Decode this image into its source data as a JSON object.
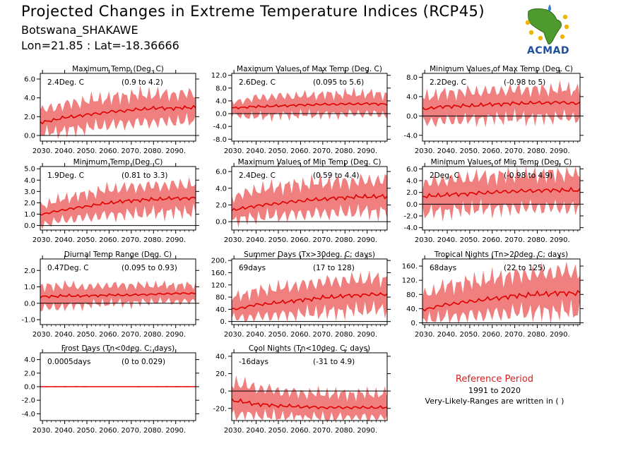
{
  "header": {
    "title": "Projected Changes in Extreme Temperature Indices (RCP45)",
    "subtitle": "Botswana_SHAKAWE",
    "coords": "Lon=21.85 : Lat=-18.36666"
  },
  "logo": {
    "text": "ACMAD"
  },
  "reference": {
    "title": "Reference Period",
    "years": "1991 to 2020",
    "note": "Very-Likely-Ranges are written in ( )"
  },
  "colors": {
    "band": "#f08080",
    "line": "#e00000",
    "zero": "#000000"
  },
  "chart_data": [
    {
      "type": "area",
      "title": "Maximum Temp (Deg. C)",
      "mean_label": "2.4Deg. C",
      "range_label": "(0.9 to 4.2)",
      "ylim": [
        -0.6,
        6.6
      ],
      "yticks": [
        0.0,
        2.0,
        4.0,
        6.0
      ],
      "ytick_labels": [
        "0.0",
        "2.0",
        "4.0",
        "6.0"
      ],
      "xlim": [
        2029,
        2099
      ],
      "xticks": [
        2030,
        2040,
        2050,
        2060,
        2070,
        2080,
        2090
      ],
      "xtick_labels": [
        "2030.",
        "2040.",
        "2050.",
        "2060.",
        "2070.",
        "2080.",
        "2090."
      ],
      "mean": {
        "x": [
          2030,
          2040,
          2050,
          2060,
          2070,
          2080,
          2090,
          2099
        ],
        "y": [
          1.4,
          1.9,
          2.2,
          2.5,
          2.7,
          2.9,
          2.9,
          3.0
        ]
      },
      "lower": {
        "x": [
          2030,
          2040,
          2050,
          2060,
          2070,
          2080,
          2090,
          2099
        ],
        "y": [
          0.2,
          0.5,
          0.8,
          1.1,
          1.3,
          1.4,
          1.5,
          1.5
        ]
      },
      "upper": {
        "x": [
          2030,
          2040,
          2050,
          2060,
          2070,
          2080,
          2090,
          2099
        ],
        "y": [
          2.7,
          3.3,
          3.7,
          4.0,
          4.3,
          4.4,
          4.4,
          4.5
        ]
      }
    },
    {
      "type": "area",
      "title": "Maximum Values of Max Temp (Deg. C)",
      "mean_label": "2.6Deg. C",
      "range_label": "(0.095 to 5.6)",
      "ylim": [
        -8.6,
        12.6
      ],
      "yticks": [
        -8.0,
        -4.0,
        0.0,
        4.0,
        8.0,
        12.0
      ],
      "ytick_labels": [
        "-8.0",
        "-4.0",
        "0.0",
        "4.0",
        "8.0",
        "12.0"
      ],
      "xlim": [
        2029,
        2099
      ],
      "xticks": [
        2030,
        2040,
        2050,
        2060,
        2070,
        2080,
        2090
      ],
      "xtick_labels": [
        "2030.",
        "2040.",
        "2050.",
        "2060.",
        "2070.",
        "2080.",
        "2090."
      ],
      "mean": {
        "x": [
          2030,
          2040,
          2050,
          2060,
          2070,
          2080,
          2090,
          2099
        ],
        "y": [
          1.8,
          2.2,
          2.4,
          2.7,
          2.9,
          3.0,
          3.1,
          3.0
        ]
      },
      "lower": {
        "x": [
          2030,
          2040,
          2050,
          2060,
          2070,
          2080,
          2090,
          2099
        ],
        "y": [
          -0.5,
          -1.0,
          -0.5,
          -0.4,
          -0.3,
          -0.2,
          0.0,
          -0.5
        ]
      },
      "upper": {
        "x": [
          2030,
          2040,
          2050,
          2060,
          2070,
          2080,
          2090,
          2099
        ],
        "y": [
          3.6,
          5.0,
          5.5,
          5.6,
          6.0,
          6.2,
          6.3,
          6.0
        ]
      }
    },
    {
      "type": "area",
      "title": "Minimum Values of Max Temp (Deg. C)",
      "mean_label": "2.2Deg. C",
      "range_label": "(-0.98 to 5)",
      "ylim": [
        -5.2,
        8.8
      ],
      "yticks": [
        -4.0,
        0.0,
        4.0,
        8.0
      ],
      "ytick_labels": [
        "-4.0",
        "0.0",
        "4.0",
        "8.0"
      ],
      "xlim": [
        2029,
        2099
      ],
      "xticks": [
        2030,
        2040,
        2050,
        2060,
        2070,
        2080,
        2090
      ],
      "xtick_labels": [
        "2030.",
        "2040.",
        "2050.",
        "2060.",
        "2070.",
        "2080.",
        "2090."
      ],
      "mean": {
        "x": [
          2030,
          2040,
          2050,
          2060,
          2070,
          2080,
          2090,
          2099
        ],
        "y": [
          1.5,
          2.0,
          2.1,
          2.4,
          2.6,
          2.7,
          2.8,
          2.6
        ]
      },
      "lower": {
        "x": [
          2030,
          2040,
          2050,
          2060,
          2070,
          2080,
          2090,
          2099
        ],
        "y": [
          -1.2,
          -1.0,
          -0.8,
          -0.5,
          -0.5,
          -0.4,
          -0.3,
          -0.4
        ]
      },
      "upper": {
        "x": [
          2030,
          2040,
          2050,
          2060,
          2070,
          2080,
          2090,
          2099
        ],
        "y": [
          4.0,
          4.8,
          5.0,
          5.2,
          5.4,
          5.5,
          5.5,
          5.5
        ]
      }
    },
    {
      "type": "area",
      "title": "Minimum Temp (Deg. C)",
      "mean_label": "1.9Deg. C",
      "range_label": "(0.81 to 3.3)",
      "ylim": [
        -0.4,
        5.2
      ],
      "yticks": [
        0.0,
        1.0,
        2.0,
        3.0,
        4.0,
        5.0
      ],
      "ytick_labels": [
        "0.0",
        "1.0",
        "2.0",
        "3.0",
        "4.0",
        "5.0"
      ],
      "xlim": [
        2029,
        2099
      ],
      "xticks": [
        2030,
        2040,
        2050,
        2060,
        2070,
        2080,
        2090
      ],
      "xtick_labels": [
        "2030.",
        "2040.",
        "2050.",
        "2060.",
        "2070.",
        "2080.",
        "2090."
      ],
      "mean": {
        "x": [
          2030,
          2040,
          2050,
          2060,
          2070,
          2080,
          2090,
          2099
        ],
        "y": [
          1.0,
          1.4,
          1.7,
          2.0,
          2.2,
          2.3,
          2.4,
          2.4
        ]
      },
      "lower": {
        "x": [
          2030,
          2040,
          2050,
          2060,
          2070,
          2080,
          2090,
          2099
        ],
        "y": [
          0.1,
          0.5,
          0.7,
          0.9,
          1.0,
          1.1,
          1.2,
          1.2
        ]
      },
      "upper": {
        "x": [
          2030,
          2040,
          2050,
          2060,
          2070,
          2080,
          2090,
          2099
        ],
        "y": [
          1.8,
          2.4,
          2.8,
          3.2,
          3.4,
          3.5,
          3.6,
          3.7
        ]
      }
    },
    {
      "type": "area",
      "title": "Maximum Values of Min Temp (Deg. C)",
      "mean_label": "2.4Deg. C",
      "range_label": "(0.59 to 4.4)",
      "ylim": [
        -1.0,
        6.6
      ],
      "yticks": [
        0.0,
        2.0,
        4.0,
        6.0
      ],
      "ytick_labels": [
        "0.0",
        "2.0",
        "4.0",
        "6.0"
      ],
      "xlim": [
        2029,
        2099
      ],
      "xticks": [
        2030,
        2040,
        2050,
        2060,
        2070,
        2080,
        2090
      ],
      "xtick_labels": [
        "2030.",
        "2040.",
        "2050.",
        "2060.",
        "2070.",
        "2080.",
        "2090."
      ],
      "mean": {
        "x": [
          2030,
          2040,
          2050,
          2060,
          2070,
          2080,
          2090,
          2099
        ],
        "y": [
          1.4,
          1.9,
          2.2,
          2.5,
          2.7,
          2.9,
          3.0,
          3.0
        ]
      },
      "lower": {
        "x": [
          2030,
          2040,
          2050,
          2060,
          2070,
          2080,
          2090,
          2099
        ],
        "y": [
          0.2,
          0.5,
          0.7,
          0.9,
          1.0,
          1.1,
          1.2,
          1.2
        ]
      },
      "upper": {
        "x": [
          2030,
          2040,
          2050,
          2060,
          2070,
          2080,
          2090,
          2099
        ],
        "y": [
          3.0,
          3.8,
          4.2,
          4.5,
          4.7,
          4.8,
          4.9,
          5.0
        ]
      }
    },
    {
      "type": "area",
      "title": "Minimum Values of Min Temp (Deg. C)",
      "mean_label": "2Deg. C",
      "range_label": "(-0.98 to 4.9)",
      "ylim": [
        -4.4,
        6.4
      ],
      "yticks": [
        -4.0,
        -2.0,
        0.0,
        2.0,
        4.0,
        6.0
      ],
      "ytick_labels": [
        "-4.0",
        "-2.0",
        "0.0",
        "2.0",
        "4.0",
        "6.0"
      ],
      "xlim": [
        2029,
        2099
      ],
      "xticks": [
        2030,
        2040,
        2050,
        2060,
        2070,
        2080,
        2090
      ],
      "xtick_labels": [
        "2030.",
        "2040.",
        "2050.",
        "2060.",
        "2070.",
        "2080.",
        "2090."
      ],
      "mean": {
        "x": [
          2030,
          2040,
          2050,
          2060,
          2070,
          2080,
          2090,
          2099
        ],
        "y": [
          1.3,
          1.6,
          1.8,
          2.0,
          2.2,
          2.3,
          2.4,
          2.3
        ]
      },
      "lower": {
        "x": [
          2030,
          2040,
          2050,
          2060,
          2070,
          2080,
          2090,
          2099
        ],
        "y": [
          -1.5,
          -1.2,
          -0.9,
          -0.8,
          -0.7,
          -0.6,
          -0.6,
          -0.7
        ]
      },
      "upper": {
        "x": [
          2030,
          2040,
          2050,
          2060,
          2070,
          2080,
          2090,
          2099
        ],
        "y": [
          3.5,
          4.2,
          4.5,
          4.8,
          5.0,
          5.1,
          5.2,
          5.2
        ]
      }
    },
    {
      "type": "area",
      "title": "Diurnal Temp Range (Deg. C)",
      "mean_label": "0.47Deg. C",
      "range_label": "(0.095 to 0.93)",
      "ylim": [
        -1.3,
        2.7
      ],
      "yticks": [
        -1.0,
        0.0,
        1.0,
        2.0
      ],
      "ytick_labels": [
        "-1.0",
        "0.0",
        "1.0",
        "2.0"
      ],
      "xlim": [
        2029,
        2099
      ],
      "xticks": [
        2030,
        2040,
        2050,
        2060,
        2070,
        2080,
        2090
      ],
      "xtick_labels": [
        "2030.",
        "2040.",
        "2050.",
        "2060.",
        "2070.",
        "2080.",
        "2090."
      ],
      "mean": {
        "x": [
          2030,
          2040,
          2050,
          2060,
          2070,
          2080,
          2090,
          2099
        ],
        "y": [
          0.4,
          0.45,
          0.45,
          0.5,
          0.5,
          0.55,
          0.6,
          0.6
        ]
      },
      "lower": {
        "x": [
          2030,
          2040,
          2050,
          2060,
          2070,
          2080,
          2090,
          2099
        ],
        "y": [
          -0.3,
          -0.2,
          -0.1,
          0.0,
          0.0,
          0.1,
          0.1,
          0.1
        ]
      },
      "upper": {
        "x": [
          2030,
          2040,
          2050,
          2060,
          2070,
          2080,
          2090,
          2099
        ],
        "y": [
          1.0,
          1.1,
          1.0,
          1.1,
          1.1,
          1.1,
          1.1,
          1.1
        ]
      }
    },
    {
      "type": "area",
      "title": "Summer Days (Tx>30deg. C; days)",
      "mean_label": "69days",
      "range_label": "(17 to 128)",
      "ylim": [
        -10,
        205
      ],
      "yticks": [
        0,
        40,
        80,
        120,
        160,
        200
      ],
      "ytick_labels": [
        "0.",
        "40.",
        "80.",
        "120.",
        "160.",
        "200."
      ],
      "xlim": [
        2029,
        2099
      ],
      "xticks": [
        2030,
        2040,
        2050,
        2060,
        2070,
        2080,
        2090
      ],
      "xtick_labels": [
        "2030.",
        "2040.",
        "2050.",
        "2060.",
        "2070.",
        "2080.",
        "2090."
      ],
      "mean": {
        "x": [
          2030,
          2040,
          2050,
          2060,
          2070,
          2080,
          2090,
          2099
        ],
        "y": [
          40,
          55,
          62,
          70,
          78,
          84,
          88,
          90
        ]
      },
      "lower": {
        "x": [
          2030,
          2040,
          2050,
          2060,
          2070,
          2080,
          2090,
          2099
        ],
        "y": [
          10,
          15,
          20,
          25,
          30,
          35,
          38,
          40
        ]
      },
      "upper": {
        "x": [
          2030,
          2040,
          2050,
          2060,
          2070,
          2080,
          2090,
          2099
        ],
        "y": [
          80,
          100,
          110,
          120,
          130,
          135,
          140,
          140
        ]
      }
    },
    {
      "type": "area",
      "title": "Tropical Nights (Tn>20deg. C; days)",
      "mean_label": "68days",
      "range_label": "(22 to 125)",
      "ylim": [
        -5,
        180
      ],
      "yticks": [
        0,
        40,
        80,
        120,
        160
      ],
      "ytick_labels": [
        "0.",
        "40.",
        "80.",
        "120.",
        "160."
      ],
      "xlim": [
        2029,
        2099
      ],
      "xticks": [
        2030,
        2040,
        2050,
        2060,
        2070,
        2080,
        2090
      ],
      "xtick_labels": [
        "2030.",
        "2040.",
        "2050.",
        "2060.",
        "2070.",
        "2080.",
        "2090."
      ],
      "mean": {
        "x": [
          2030,
          2040,
          2050,
          2060,
          2070,
          2080,
          2090,
          2099
        ],
        "y": [
          38,
          52,
          60,
          68,
          76,
          80,
          84,
          84
        ]
      },
      "lower": {
        "x": [
          2030,
          2040,
          2050,
          2060,
          2070,
          2080,
          2090,
          2099
        ],
        "y": [
          10,
          15,
          20,
          24,
          28,
          30,
          32,
          32
        ]
      },
      "upper": {
        "x": [
          2030,
          2040,
          2050,
          2060,
          2070,
          2080,
          2090,
          2099
        ],
        "y": [
          80,
          105,
          115,
          125,
          135,
          140,
          145,
          145
        ]
      }
    },
    {
      "type": "area",
      "title": "Frost Days (Tn<0deg. C; days)",
      "mean_label": "0.0005days",
      "range_label": "(0 to 0.029)",
      "ylim": [
        -5,
        5
      ],
      "yticks": [
        -4.0,
        -2.0,
        0.0,
        2.0,
        4.0
      ],
      "ytick_labels": [
        "-4.0",
        "-2.0",
        "0.0",
        "2.0",
        "4.0"
      ],
      "xlim": [
        2029,
        2099
      ],
      "xticks": [
        2030,
        2040,
        2050,
        2060,
        2070,
        2080,
        2090
      ],
      "xtick_labels": [
        "2030.",
        "2040.",
        "2050.",
        "2060.",
        "2070.",
        "2080.",
        "2090."
      ],
      "mean": {
        "x": [
          2030,
          2040,
          2050,
          2060,
          2070,
          2080,
          2090,
          2099
        ],
        "y": [
          0,
          0,
          0,
          0,
          0,
          0,
          0,
          0
        ]
      },
      "lower": {
        "x": [
          2030,
          2040,
          2050,
          2060,
          2070,
          2080,
          2090,
          2099
        ],
        "y": [
          0,
          0,
          0,
          0,
          0,
          0,
          0,
          0
        ]
      },
      "upper": {
        "x": [
          2030,
          2040,
          2050,
          2060,
          2070,
          2080,
          2090,
          2099
        ],
        "y": [
          0.03,
          0.05,
          0.03,
          0.03,
          0.03,
          0.03,
          0.03,
          0.03
        ]
      }
    },
    {
      "type": "area",
      "title": "Cool Nights (Tn<10deg. C; days)",
      "mean_label": "-16days",
      "range_label": "(-31 to 4.9)",
      "ylim": [
        -34,
        44
      ],
      "yticks": [
        -20,
        0,
        20,
        40
      ],
      "ytick_labels": [
        "-20.",
        "0.",
        "20.",
        "40."
      ],
      "xlim": [
        2029,
        2099
      ],
      "xticks": [
        2030,
        2040,
        2050,
        2060,
        2070,
        2080,
        2090
      ],
      "xtick_labels": [
        "2030.",
        "2040.",
        "2050.",
        "2060.",
        "2070.",
        "2080.",
        "2090."
      ],
      "mean": {
        "x": [
          2030,
          2040,
          2050,
          2060,
          2070,
          2080,
          2090,
          2099
        ],
        "y": [
          -11,
          -15,
          -17,
          -18,
          -19,
          -19,
          -19,
          -19
        ]
      },
      "lower": {
        "x": [
          2030,
          2040,
          2050,
          2060,
          2070,
          2080,
          2090,
          2099
        ],
        "y": [
          -28,
          -29,
          -30,
          -31,
          -31,
          -31,
          -31,
          -31
        ]
      },
      "upper": {
        "x": [
          2030,
          2040,
          2050,
          2060,
          2070,
          2080,
          2090,
          2099
        ],
        "y": [
          10,
          4,
          0,
          -2,
          -3,
          -3,
          -3,
          -3
        ]
      }
    }
  ]
}
